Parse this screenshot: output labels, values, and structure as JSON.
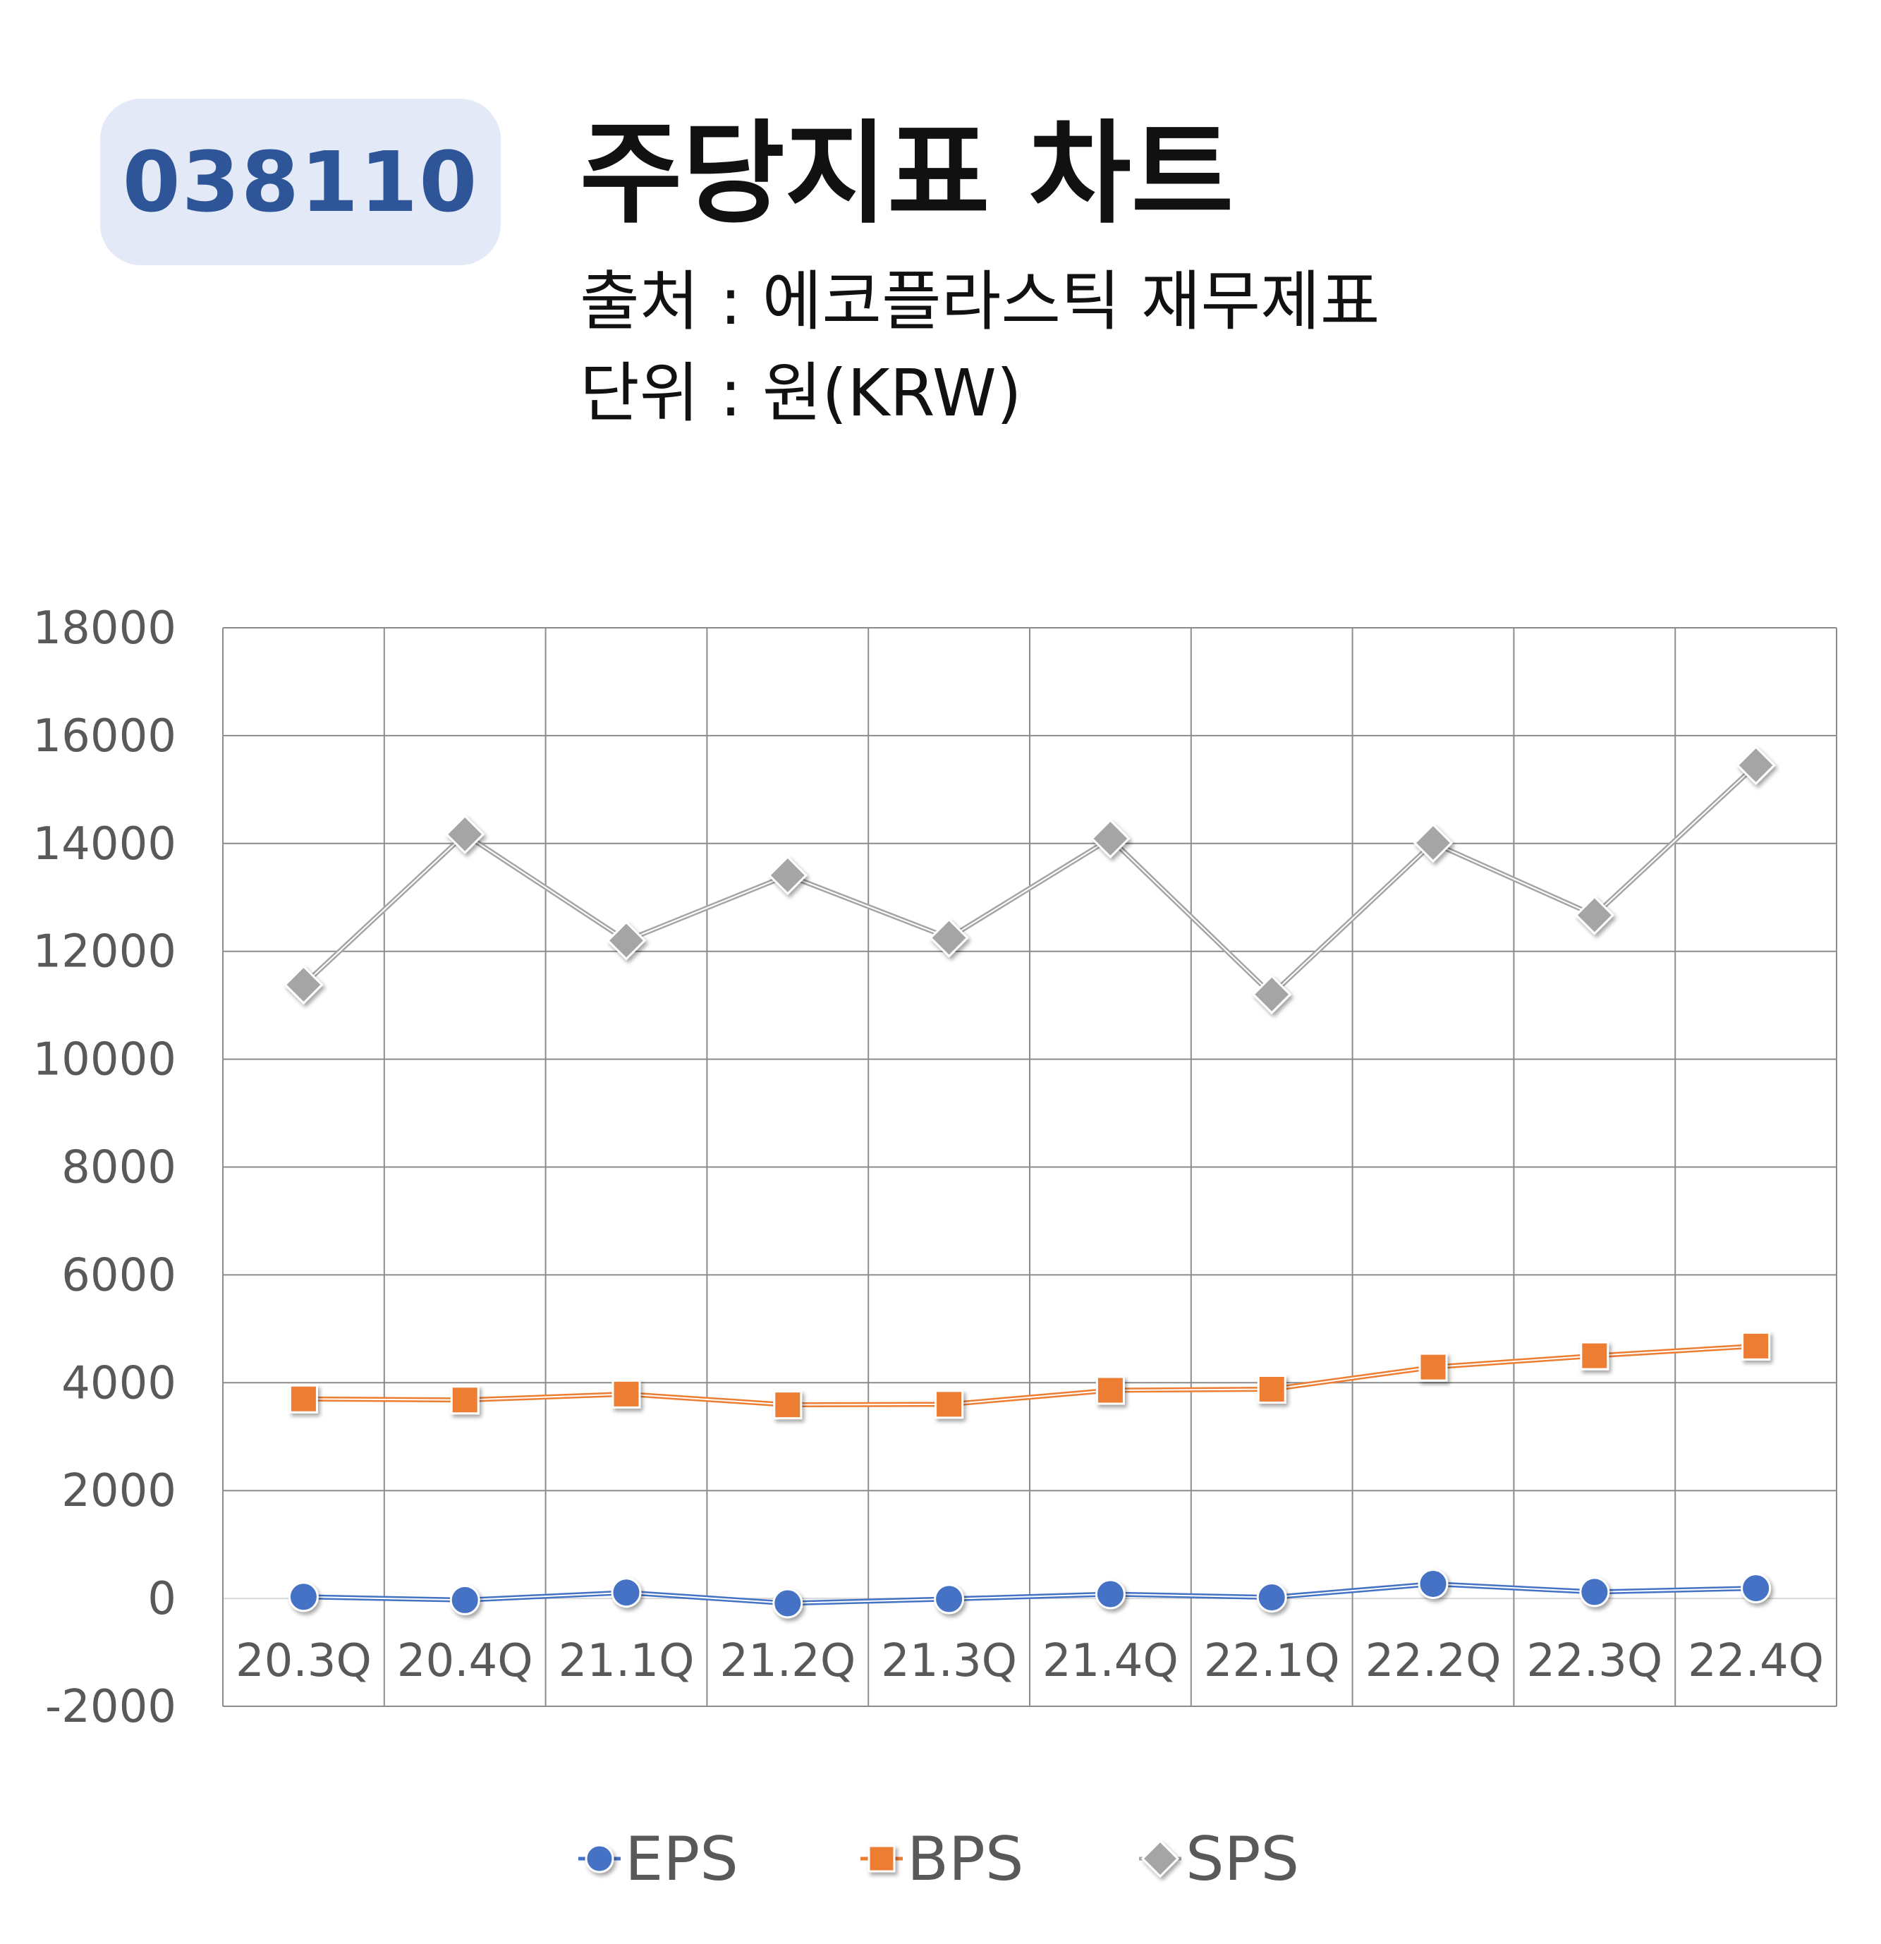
{
  "header": {
    "ticker": "038110",
    "title": "주당지표 차트",
    "source": "출처 : 에코플라스틱 재무제표",
    "unit": "단위 : 원(KRW)"
  },
  "chart_data": {
    "type": "line",
    "categories": [
      "20.3Q",
      "20.4Q",
      "21.1Q",
      "21.2Q",
      "21.3Q",
      "21.4Q",
      "22.1Q",
      "22.2Q",
      "22.3Q",
      "22.4Q"
    ],
    "series": [
      {
        "name": "EPS",
        "color": "#4472c4",
        "marker": "circle",
        "values": [
          30,
          -30,
          110,
          -90,
          -10,
          80,
          20,
          270,
          120,
          190
        ]
      },
      {
        "name": "BPS",
        "color": "#ed7d31",
        "marker": "square",
        "values": [
          3700,
          3680,
          3790,
          3590,
          3600,
          3860,
          3880,
          4290,
          4500,
          4680
        ]
      },
      {
        "name": "SPS",
        "color": "#a5a5a5",
        "marker": "diamond",
        "values": [
          11380,
          14170,
          12200,
          13410,
          12250,
          14090,
          11200,
          14010,
          12670,
          15450
        ]
      }
    ],
    "yticks": [
      "18000",
      "16000",
      "14000",
      "12000",
      "10000",
      "8000",
      "6000",
      "4000",
      "2000",
      "0",
      "-2000"
    ],
    "ylim": [
      -2000,
      18000
    ],
    "grid": true,
    "legend": "bottom"
  }
}
